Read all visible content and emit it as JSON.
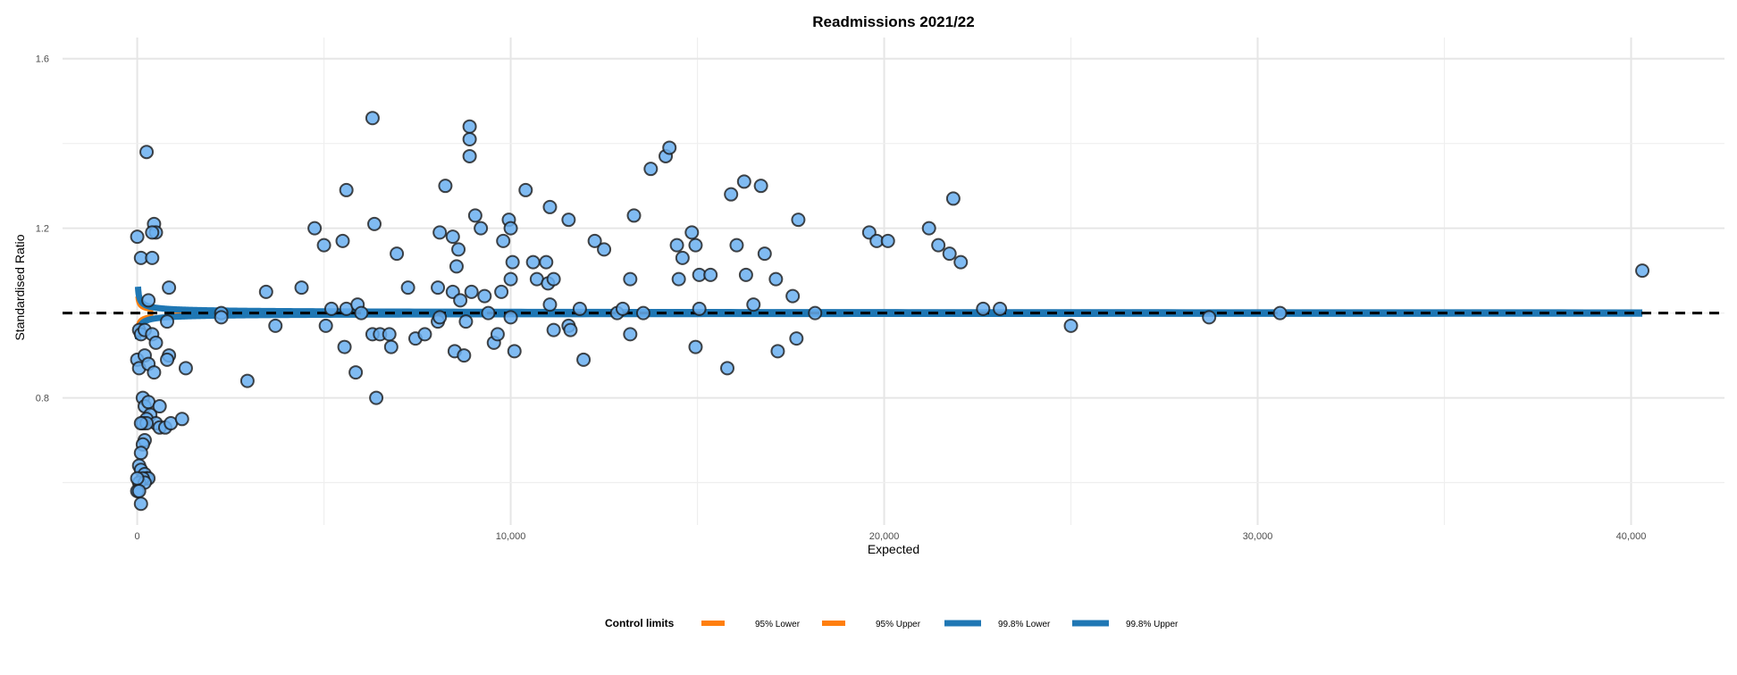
{
  "chart_data": {
    "type": "scatter",
    "title": "Readmissions 2021/22",
    "xlabel": "Expected",
    "ylabel": "Standardised Ratio",
    "xlim": [
      -2000,
      42500
    ],
    "ylim": [
      0.5,
      1.65
    ],
    "x_ticks": [
      0,
      10000,
      20000,
      30000,
      40000
    ],
    "x_tick_labels": [
      "0",
      "10,000",
      "20,000",
      "30,000",
      "40,000"
    ],
    "y_ticks": [
      0.8,
      1.2,
      1.6
    ],
    "y_tick_labels": [
      "0.8",
      "1.2",
      "1.6"
    ],
    "grid": true,
    "target_line": {
      "y": 1.0,
      "style": "dashed",
      "color": "#000000"
    },
    "point_color": "#6aaff0",
    "point_edge_color": "#1a1a1a",
    "control_limits": {
      "x_max": 40300,
      "lines": [
        {
          "name": "95% Lower",
          "z": -1.96,
          "style": "dashed",
          "color": "#ff7f0e"
        },
        {
          "name": "95% Upper",
          "z": 1.96,
          "style": "dashed",
          "color": "#ff7f0e"
        },
        {
          "name": "99.8% Lower",
          "z": -3.09,
          "style": "solid",
          "color": "#1f77b4"
        },
        {
          "name": "99.8% Upper",
          "z": 3.09,
          "style": "solid",
          "color": "#1f77b4"
        }
      ]
    },
    "legend": {
      "title": "Control limits",
      "position": "bottom"
    },
    "points": [
      [
        0,
        1.18
      ],
      [
        50,
        0.96
      ],
      [
        100,
        0.95
      ],
      [
        0,
        0.89
      ],
      [
        50,
        0.87
      ],
      [
        200,
        0.96
      ],
      [
        100,
        1.13
      ],
      [
        300,
        1.03
      ],
      [
        250,
        1.38
      ],
      [
        400,
        1.13
      ],
      [
        450,
        1.21
      ],
      [
        500,
        1.19
      ],
      [
        400,
        1.19
      ],
      [
        200,
        0.9
      ],
      [
        300,
        0.88
      ],
      [
        450,
        0.86
      ],
      [
        400,
        0.95
      ],
      [
        500,
        0.93
      ],
      [
        800,
        0.98
      ],
      [
        850,
        0.9
      ],
      [
        800,
        0.89
      ],
      [
        850,
        1.06
      ],
      [
        1300,
        0.87
      ],
      [
        150,
        0.8
      ],
      [
        200,
        0.78
      ],
      [
        300,
        0.79
      ],
      [
        350,
        0.76
      ],
      [
        250,
        0.75
      ],
      [
        500,
        0.74
      ],
      [
        600,
        0.78
      ],
      [
        150,
        0.74
      ],
      [
        250,
        0.74
      ],
      [
        100,
        0.74
      ],
      [
        200,
        0.7
      ],
      [
        150,
        0.69
      ],
      [
        100,
        0.67
      ],
      [
        50,
        0.64
      ],
      [
        100,
        0.63
      ],
      [
        200,
        0.62
      ],
      [
        250,
        0.61
      ],
      [
        300,
        0.61
      ],
      [
        150,
        0.61
      ],
      [
        50,
        0.6
      ],
      [
        200,
        0.6
      ],
      [
        0,
        0.58
      ],
      [
        50,
        0.58
      ],
      [
        100,
        0.55
      ],
      [
        0,
        0.61
      ],
      [
        600,
        0.73
      ],
      [
        750,
        0.73
      ],
      [
        900,
        0.74
      ],
      [
        1200,
        0.75
      ],
      [
        2250,
        1.0
      ],
      [
        2250,
        0.99
      ],
      [
        2950,
        0.84
      ],
      [
        3450,
        1.05
      ],
      [
        3700,
        0.97
      ],
      [
        4400,
        1.06
      ],
      [
        4750,
        1.2
      ],
      [
        5000,
        1.16
      ],
      [
        5050,
        0.97
      ],
      [
        5200,
        1.01
      ],
      [
        5500,
        1.17
      ],
      [
        5550,
        0.92
      ],
      [
        5600,
        1.29
      ],
      [
        5600,
        1.01
      ],
      [
        5850,
        0.86
      ],
      [
        5900,
        1.02
      ],
      [
        6000,
        1.0
      ],
      [
        6300,
        1.46
      ],
      [
        6300,
        0.95
      ],
      [
        6350,
        1.21
      ],
      [
        6400,
        0.8
      ],
      [
        6500,
        0.95
      ],
      [
        6750,
        0.95
      ],
      [
        6800,
        0.92
      ],
      [
        6950,
        1.14
      ],
      [
        7250,
        1.06
      ],
      [
        7450,
        0.94
      ],
      [
        7700,
        0.95
      ],
      [
        8050,
        1.06
      ],
      [
        8100,
        1.19
      ],
      [
        8050,
        0.98
      ],
      [
        8100,
        0.99
      ],
      [
        8250,
        1.3
      ],
      [
        8450,
        1.18
      ],
      [
        8450,
        1.05
      ],
      [
        8500,
        0.91
      ],
      [
        8550,
        1.11
      ],
      [
        8600,
        1.15
      ],
      [
        8650,
        1.03
      ],
      [
        8750,
        0.9
      ],
      [
        8900,
        1.44
      ],
      [
        8900,
        1.41
      ],
      [
        8900,
        1.37
      ],
      [
        8800,
        0.98
      ],
      [
        8950,
        1.05
      ],
      [
        9050,
        1.23
      ],
      [
        9200,
        1.2
      ],
      [
        9300,
        1.04
      ],
      [
        9400,
        1.0
      ],
      [
        9550,
        0.93
      ],
      [
        9650,
        0.95
      ],
      [
        9750,
        1.05
      ],
      [
        9800,
        1.17
      ],
      [
        9950,
        1.22
      ],
      [
        10000,
        1.2
      ],
      [
        10000,
        1.08
      ],
      [
        10050,
        1.12
      ],
      [
        10100,
        0.91
      ],
      [
        10000,
        0.99
      ],
      [
        10400,
        1.29
      ],
      [
        10600,
        1.12
      ],
      [
        10700,
        1.08
      ],
      [
        10950,
        1.12
      ],
      [
        11000,
        1.07
      ],
      [
        11050,
        1.25
      ],
      [
        11050,
        1.02
      ],
      [
        11150,
        1.08
      ],
      [
        11150,
        0.96
      ],
      [
        11550,
        1.22
      ],
      [
        11550,
        0.97
      ],
      [
        11600,
        0.96
      ],
      [
        11850,
        1.01
      ],
      [
        11950,
        0.89
      ],
      [
        12250,
        1.17
      ],
      [
        12500,
        1.15
      ],
      [
        12850,
        1.0
      ],
      [
        13000,
        1.01
      ],
      [
        13200,
        1.08
      ],
      [
        13200,
        0.95
      ],
      [
        13300,
        1.23
      ],
      [
        13550,
        1.0
      ],
      [
        13750,
        1.34
      ],
      [
        14150,
        1.37
      ],
      [
        14250,
        1.39
      ],
      [
        14450,
        1.16
      ],
      [
        14500,
        1.08
      ],
      [
        14600,
        1.13
      ],
      [
        14850,
        1.19
      ],
      [
        14950,
        1.16
      ],
      [
        14950,
        0.92
      ],
      [
        15050,
        1.09
      ],
      [
        15050,
        1.01
      ],
      [
        15350,
        1.09
      ],
      [
        15800,
        0.87
      ],
      [
        15900,
        1.28
      ],
      [
        16050,
        1.16
      ],
      [
        16250,
        1.31
      ],
      [
        16300,
        1.09
      ],
      [
        16500,
        1.02
      ],
      [
        16700,
        1.3
      ],
      [
        16800,
        1.14
      ],
      [
        17100,
        1.08
      ],
      [
        17150,
        0.91
      ],
      [
        17550,
        1.04
      ],
      [
        17650,
        0.94
      ],
      [
        17700,
        1.22
      ],
      [
        18150,
        1.0
      ],
      [
        19600,
        1.19
      ],
      [
        19800,
        1.17
      ],
      [
        20100,
        1.17
      ],
      [
        21200,
        1.2
      ],
      [
        21450,
        1.16
      ],
      [
        21750,
        1.14
      ],
      [
        21850,
        1.27
      ],
      [
        22050,
        1.12
      ],
      [
        22650,
        1.01
      ],
      [
        23100,
        1.01
      ],
      [
        25000,
        0.97
      ],
      [
        28700,
        0.99
      ],
      [
        30600,
        1.0
      ],
      [
        40300,
        1.1
      ]
    ]
  }
}
